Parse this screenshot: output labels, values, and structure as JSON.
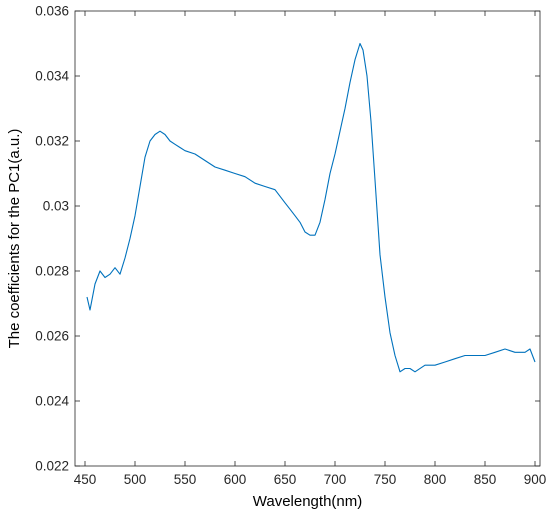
{
  "chart_data": {
    "type": "line",
    "title": "",
    "xlabel": "Wavelength(nm)",
    "ylabel": "The coefficients for the PC1(a.u.)",
    "xlim": [
      440,
      905
    ],
    "ylim": [
      0.022,
      0.036
    ],
    "x_ticks": [
      450,
      500,
      550,
      600,
      650,
      700,
      750,
      800,
      850,
      900
    ],
    "y_ticks": [
      0.022,
      0.024,
      0.026,
      0.028,
      0.03,
      0.032,
      0.034,
      0.036
    ],
    "y_tick_labels": [
      "0.022",
      "0.024",
      "0.026",
      "0.028",
      "0.03",
      "0.032",
      "0.034",
      "0.036"
    ],
    "grid": false,
    "legend": "none",
    "line_color": "#0072BD",
    "series": [
      {
        "x": [
          452,
          455,
          460,
          465,
          470,
          475,
          480,
          485,
          490,
          495,
          500,
          505,
          510,
          515,
          520,
          525,
          530,
          535,
          540,
          545,
          550,
          560,
          570,
          580,
          590,
          600,
          610,
          620,
          630,
          640,
          650,
          655,
          660,
          665,
          670,
          675,
          680,
          685,
          690,
          695,
          700,
          705,
          710,
          715,
          720,
          725,
          728,
          732,
          736,
          740,
          745,
          750,
          755,
          760,
          765,
          770,
          775,
          780,
          790,
          800,
          810,
          820,
          830,
          840,
          850,
          860,
          870,
          880,
          890,
          895,
          900
        ],
        "values": [
          0.0272,
          0.0268,
          0.0276,
          0.028,
          0.0278,
          0.0279,
          0.0281,
          0.0279,
          0.0284,
          0.029,
          0.0297,
          0.0306,
          0.0315,
          0.032,
          0.0322,
          0.0323,
          0.0322,
          0.032,
          0.0319,
          0.0318,
          0.0317,
          0.0316,
          0.0314,
          0.0312,
          0.0311,
          0.031,
          0.0309,
          0.0307,
          0.0306,
          0.0305,
          0.0301,
          0.0299,
          0.0297,
          0.0295,
          0.0292,
          0.0291,
          0.0291,
          0.0295,
          0.0302,
          0.031,
          0.0316,
          0.0323,
          0.033,
          0.0338,
          0.0345,
          0.035,
          0.0348,
          0.034,
          0.0326,
          0.0308,
          0.0285,
          0.0272,
          0.0261,
          0.0254,
          0.0249,
          0.025,
          0.025,
          0.0249,
          0.0251,
          0.0251,
          0.0252,
          0.0253,
          0.0254,
          0.0254,
          0.0254,
          0.0255,
          0.0256,
          0.0255,
          0.0255,
          0.0256,
          0.0252
        ]
      }
    ]
  }
}
